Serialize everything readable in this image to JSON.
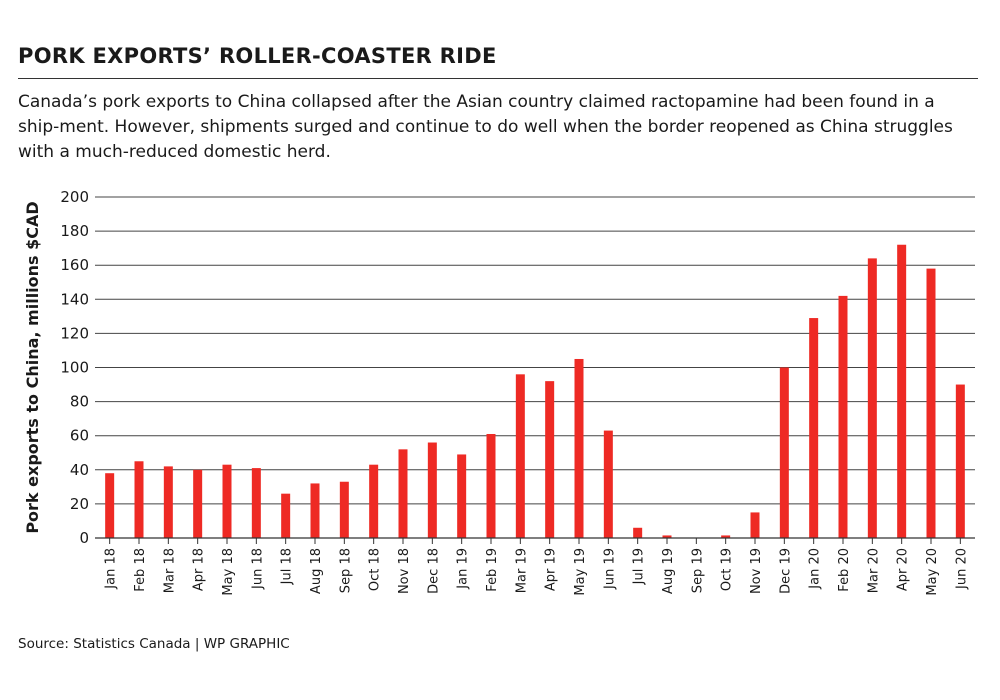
{
  "header": {
    "title": "PORK EXPORTS’ ROLLER-COASTER RIDE",
    "subtitle": "Canada’s pork exports to China collapsed after the Asian country claimed ractopamine had been found in a ship-ment. However, shipments surged and continue to do well when the border reopened as China struggles with a much-reduced domestic herd."
  },
  "footer": {
    "source": "Source: Statistics Canada  |  WP GRAPHIC"
  },
  "chart_data": {
    "type": "bar",
    "ylabel": "Pork exports to China, millions $CAD",
    "xlabel": "",
    "ylim": [
      0,
      200
    ],
    "yticks": [
      0,
      20,
      40,
      60,
      80,
      100,
      120,
      140,
      160,
      180,
      200
    ],
    "grid": true,
    "bar_color": "#ee2a24",
    "categories": [
      "Jan 18",
      "Feb 18",
      "Mar 18",
      "Apr 18",
      "May 18",
      "Jun 18",
      "Jul 18",
      "Aug 18",
      "Sep 18",
      "Oct 18",
      "Nov 18",
      "Dec 18",
      "Jan 19",
      "Feb 19",
      "Mar 19",
      "Apr 19",
      "May 19",
      "Jun 19",
      "Jul 19",
      "Aug 19",
      "Sep 19",
      "Oct 19",
      "Nov 19",
      "Dec 19",
      "Jan 20",
      "Feb 20",
      "Mar 20",
      "Apr 20",
      "May 20",
      "Jun 20"
    ],
    "values": [
      38,
      45,
      42,
      40,
      43,
      41,
      26,
      32,
      33,
      43,
      52,
      56,
      49,
      61,
      96,
      92,
      105,
      63,
      6,
      1.5,
      0,
      1.5,
      15,
      100,
      129,
      142,
      164,
      172,
      158,
      90
    ]
  }
}
